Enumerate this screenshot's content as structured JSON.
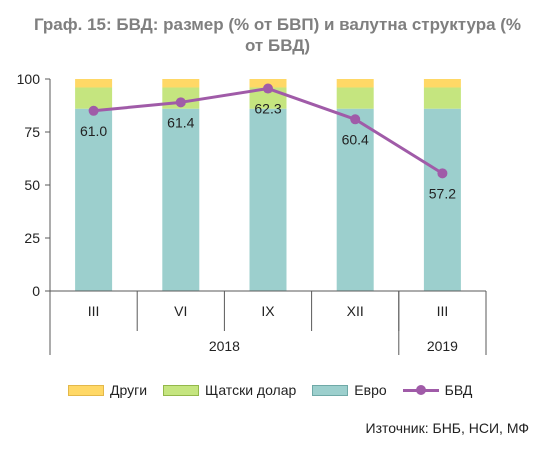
{
  "title_line1": "Граф. 15: БВД: размер (% от БВП) и валутна структура  (%",
  "title_line2": "от БВД)",
  "source": "Източник: БНБ, НСИ, МФ",
  "colors": {
    "euro": "#9ccfcd",
    "usd": "#c5e57f",
    "other": "#ffd866",
    "line": "#a05ba8"
  },
  "chart_data": {
    "type": "bar",
    "stacked": true,
    "categories": [
      "III",
      "VI",
      "IX",
      "XII",
      "III"
    ],
    "year_groups": [
      {
        "label": "2018",
        "span": 4
      },
      {
        "label": "2019",
        "span": 1
      }
    ],
    "ylim": [
      0,
      100
    ],
    "yticks": [
      0,
      25,
      50,
      75,
      100
    ],
    "series": [
      {
        "name": "Евро",
        "key": "euro",
        "values": [
          86,
          86,
          86,
          86,
          86
        ]
      },
      {
        "name": "Щатски долар",
        "key": "usd",
        "values": [
          10,
          10,
          10,
          10,
          10
        ]
      },
      {
        "name": "Други",
        "key": "other",
        "values": [
          4,
          4,
          4,
          4,
          4
        ]
      }
    ],
    "line_series": {
      "name": "БВД",
      "values": [
        61.0,
        61.4,
        62.3,
        60.4,
        57.2
      ],
      "labels": [
        "61.0",
        "61.4",
        "62.3",
        "60.4",
        "57.2"
      ],
      "plot_positions": [
        85,
        89,
        95.5,
        81,
        55.5
      ]
    },
    "legend": [
      "Други",
      "Щатски долар",
      "Евро",
      "БВД"
    ],
    "legend_position": "bottom",
    "grid": false
  }
}
